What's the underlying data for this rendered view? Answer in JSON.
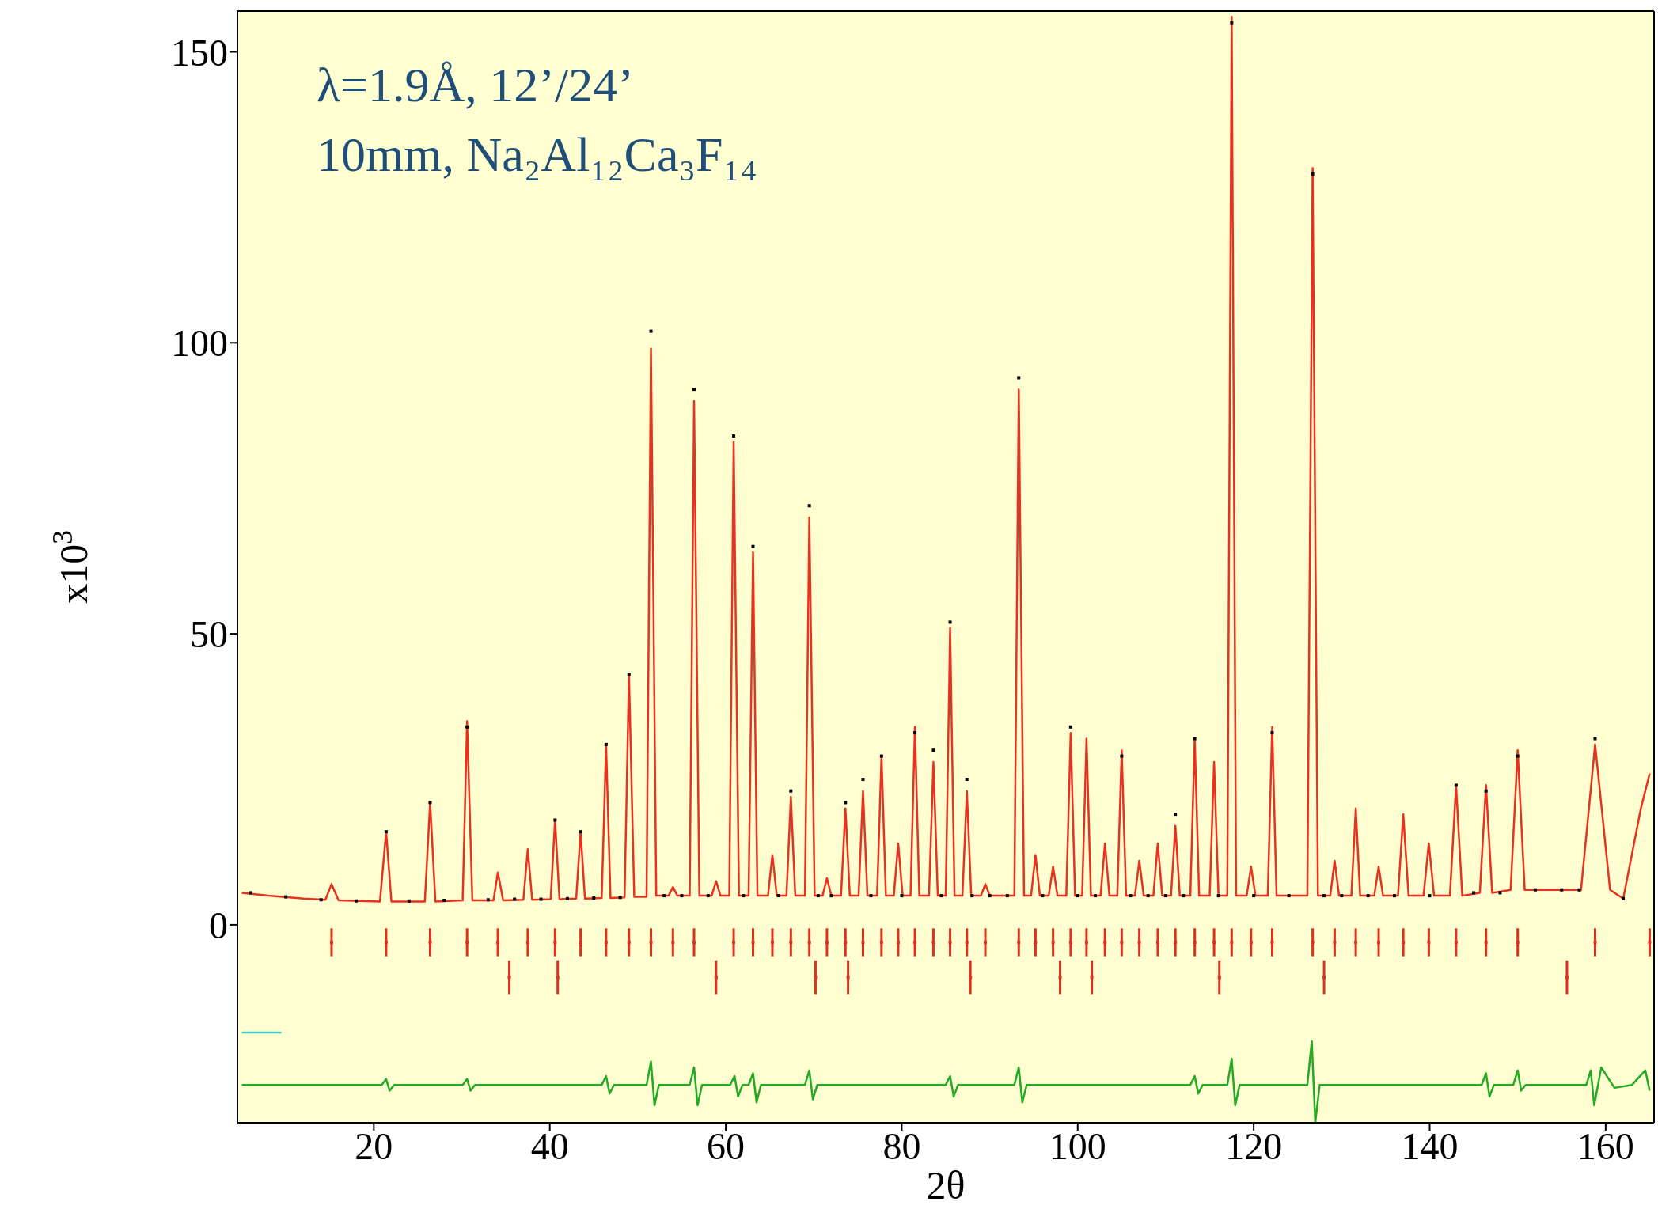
{
  "chart_data": {
    "type": "line",
    "xlabel": "2θ",
    "ylabel": "x10$^{3}$",
    "annotations": [
      "λ=1.9Å, 12’/24’",
      "10mm, Na₂Al₁₂Ca₃F₁₄"
    ],
    "xlim": [
      4.5,
      165.5
    ],
    "ylim": [
      -34,
      157
    ],
    "xticks": [
      20,
      40,
      60,
      80,
      100,
      120,
      140,
      160
    ],
    "yticks": [
      0,
      50,
      100,
      150
    ],
    "legend": false,
    "series": [
      {
        "type": "scatter",
        "color": "#000000",
        "marker": "square",
        "x": [
          6,
          10,
          14,
          18,
          21.4,
          24,
          26.4,
          28,
          30.6,
          33,
          36,
          39,
          40.6,
          42,
          43.5,
          45,
          46.4,
          48,
          49,
          51.5,
          53,
          55,
          56.4,
          58,
          60.9,
          62,
          63.1,
          66,
          67.4,
          69.5,
          70.5,
          72,
          73.6,
          75.6,
          76.5,
          77.7,
          80,
          81.5,
          83.6,
          84.5,
          85.5,
          88,
          87.4,
          90,
          92,
          93.3,
          96,
          99.2,
          100,
          102,
          105,
          106,
          108,
          110,
          111.1,
          112,
          113.3,
          116,
          117.5,
          120,
          122.1,
          124,
          126.7,
          128,
          130,
          133,
          136,
          140,
          143,
          145,
          146.4,
          148,
          150,
          152,
          155,
          157,
          158.8,
          162
        ],
        "values": [
          5.5,
          4.8,
          4.3,
          4.1,
          16,
          4.1,
          21,
          4.2,
          34,
          4.3,
          4.4,
          4.4,
          18,
          4.5,
          16,
          4.6,
          31,
          4.7,
          43,
          102,
          5,
          5,
          92,
          5,
          84,
          5,
          65,
          5,
          23,
          72,
          5,
          5,
          21,
          25,
          5,
          29,
          5,
          33,
          30,
          5,
          52,
          5,
          25,
          5,
          5,
          94,
          5,
          34,
          5,
          5,
          29,
          5,
          5,
          5,
          19,
          5,
          32,
          5,
          155,
          5,
          33,
          5,
          129,
          5,
          5,
          5,
          5,
          5,
          24,
          5.5,
          23,
          5.5,
          29,
          6,
          6,
          6,
          32,
          4.5
        ]
      },
      {
        "color": "#e8321e",
        "marker": "none",
        "x": [
          5,
          8,
          12,
          14.5,
          15.2,
          16,
          20.7,
          21.4,
          22,
          25.8,
          26.4,
          27,
          30.1,
          30.6,
          31.2,
          33.6,
          34.1,
          34.7,
          37,
          37.5,
          38,
          40.1,
          40.6,
          41.1,
          43,
          43.5,
          44,
          45.9,
          46.4,
          46.9,
          48.5,
          49,
          49.6,
          51,
          51.5,
          52.1,
          53.5,
          54,
          54.5,
          55.9,
          56.4,
          57,
          58.4,
          58.9,
          59.4,
          60.4,
          60.9,
          61.5,
          62.6,
          63.1,
          63.6,
          64.8,
          65.3,
          65.8,
          66.9,
          67.4,
          67.9,
          69,
          69.5,
          70.1,
          71,
          71.5,
          72,
          73.1,
          73.6,
          74.1,
          75.1,
          75.6,
          76.1,
          77.2,
          77.7,
          78.2,
          79.1,
          79.6,
          80.1,
          81,
          81.5,
          82,
          83.1,
          83.6,
          84.1,
          85,
          85.5,
          86,
          86.9,
          87.4,
          87.9,
          89,
          89.5,
          90,
          92.8,
          93.3,
          93.9,
          94.7,
          95.2,
          95.7,
          96.7,
          97.2,
          97.7,
          98.7,
          99.2,
          99.7,
          100.5,
          101,
          101.5,
          102.6,
          103.1,
          103.6,
          104.5,
          105,
          105.5,
          106.5,
          107,
          107.5,
          108.6,
          109.1,
          109.6,
          110.6,
          111.1,
          111.6,
          112.8,
          113.3,
          113.8,
          115,
          115.5,
          116,
          117,
          117.5,
          118,
          119.2,
          119.7,
          120.2,
          121.6,
          122.1,
          122.6,
          126.1,
          126.7,
          127.3,
          128.7,
          129.2,
          129.7,
          131.1,
          131.6,
          132.1,
          133.7,
          134.2,
          134.7,
          136.4,
          137,
          137.6,
          139.3,
          139.9,
          140.5,
          142.3,
          143,
          143.7,
          145.7,
          146.4,
          147.1,
          149.2,
          150,
          150.8,
          153,
          155,
          157.2,
          158.8,
          160.5,
          162,
          164,
          165
        ],
        "values": [
          5.5,
          5,
          4.5,
          4.3,
          7,
          4.2,
          4,
          16,
          4,
          4,
          21,
          4,
          4.2,
          35,
          4.2,
          4.2,
          9,
          4.2,
          4.3,
          13,
          4.3,
          4.4,
          18,
          4.4,
          4.5,
          16,
          4.5,
          4.6,
          31,
          4.6,
          4.7,
          43,
          4.8,
          4.8,
          99,
          5,
          5,
          6.5,
          5,
          5,
          90,
          5,
          5,
          7.5,
          5,
          5,
          83,
          5,
          5,
          64,
          5,
          5,
          12,
          5,
          5,
          22,
          5,
          5,
          70,
          5,
          5,
          8,
          5,
          5,
          20,
          5,
          5,
          23,
          5,
          5,
          29,
          5,
          5,
          14,
          5,
          5,
          34,
          5,
          5,
          28,
          5,
          5,
          51,
          5,
          5,
          23,
          5,
          5,
          7,
          5,
          5,
          92,
          5,
          5,
          12,
          5,
          5,
          10,
          5,
          5,
          33,
          5,
          5,
          32,
          5,
          5,
          14,
          5,
          5,
          30,
          5,
          5,
          11,
          5,
          5,
          14,
          5,
          5,
          17,
          5,
          5,
          32,
          5,
          5,
          28,
          5,
          5,
          156,
          5,
          5,
          10,
          5,
          5,
          34,
          5,
          5,
          130,
          5,
          5,
          11,
          5,
          5,
          20,
          5,
          5,
          10,
          5,
          5,
          19,
          5,
          5,
          14,
          5,
          5,
          24,
          5,
          5.5,
          24,
          5.5,
          6,
          30,
          6,
          6,
          6,
          6,
          31,
          6,
          4.5,
          20,
          26
        ]
      },
      {
        "type": "line",
        "color": "#22aa22",
        "marker": "none",
        "x": [
          5,
          20.9,
          21.4,
          21.8,
          22.3,
          30.1,
          30.6,
          31,
          31.5,
          45.9,
          46.4,
          46.8,
          47.3,
          51,
          51.5,
          51.9,
          52.4,
          55.9,
          56.4,
          56.8,
          57.3,
          60.5,
          61,
          61.4,
          61.9,
          62.6,
          63.1,
          63.5,
          64,
          69,
          69.5,
          69.9,
          70.4,
          85,
          85.5,
          85.9,
          86.4,
          92.8,
          93.3,
          93.7,
          94.2,
          112.8,
          113.3,
          113.7,
          114.2,
          117,
          117.5,
          117.9,
          118.4,
          126.1,
          126.6,
          127,
          127.5,
          145.9,
          146.4,
          146.8,
          147.3,
          149.5,
          150,
          150.4,
          150.9,
          157.8,
          158.3,
          158.7,
          159.5,
          161,
          163,
          164.5,
          165
        ],
        "values": [
          -27.5,
          -27.5,
          -26.5,
          -28.5,
          -27.5,
          -27.5,
          -26.5,
          -28.5,
          -27.5,
          -27.5,
          -26,
          -29,
          -27.5,
          -27.5,
          -23.5,
          -31,
          -27.5,
          -27.5,
          -24.5,
          -31,
          -27.5,
          -27.5,
          -26,
          -29.5,
          -27.5,
          -27.5,
          -25.5,
          -30.5,
          -27.5,
          -27.5,
          -25,
          -30,
          -27.5,
          -27.5,
          -26,
          -29.5,
          -27.5,
          -27.5,
          -24.5,
          -30.5,
          -27.5,
          -27.5,
          -26,
          -29,
          -27.5,
          -27.5,
          -23,
          -31,
          -27.5,
          -27.5,
          -20,
          -34,
          -27.5,
          -27.5,
          -25.5,
          -29.5,
          -27.5,
          -27.5,
          -25,
          -28.5,
          -27.5,
          -27.5,
          -25,
          -31,
          -24.5,
          -28,
          -27.5,
          -25,
          -28.5
        ]
      },
      {
        "type": "line",
        "color": "#40d0d0",
        "marker": "none",
        "x": [
          5,
          9.5
        ],
        "values": [
          -18.5,
          -18.5
        ]
      },
      {
        "type": "scatter",
        "color": "#e03020",
        "marker": "square",
        "errors": [
          2.4,
          2.4,
          2.4,
          2.4,
          2.4,
          2.4,
          2.4,
          2.4,
          2.4,
          2.4,
          2.4,
          2.4,
          2.4,
          2.4,
          2.4,
          2.4,
          2.4,
          2.4,
          2.4,
          2.4,
          2.4,
          2.4,
          2.4,
          2.4,
          2.4,
          2.4,
          2.4,
          2.4,
          2.4,
          2.4,
          2.4,
          2.4,
          2.4,
          2.4,
          2.4,
          2.4,
          2.4,
          2.4,
          2.4,
          2.4,
          2.4,
          2.4,
          2.4,
          2.4,
          2.4,
          2.4,
          2.4,
          2.4,
          2.4,
          2.4,
          2.4,
          2.4,
          2.4,
          2.4
        ],
        "x": [
          15.2,
          21.4,
          26.4,
          30.6,
          34.1,
          37.5,
          40.6,
          43.5,
          46.4,
          49,
          51.5,
          54,
          56.4,
          60.9,
          63.1,
          65.3,
          67.4,
          69.5,
          71.5,
          73.6,
          75.6,
          77.7,
          79.6,
          81.5,
          83.6,
          85.5,
          87.4,
          89.5,
          93.3,
          95.2,
          97.2,
          99.2,
          101,
          103.1,
          105,
          107,
          109.1,
          111.1,
          113.3,
          115.5,
          117.5,
          119.7,
          122.1,
          126.7,
          129.2,
          131.6,
          134.2,
          137,
          139.9,
          143,
          146.4,
          150,
          158.8,
          165
        ],
        "values": [
          -3,
          -3,
          -3,
          -3,
          -3,
          -3,
          -3,
          -3,
          -3,
          -3,
          -3,
          -3,
          -3,
          -3,
          -3,
          -3,
          -3,
          -3,
          -3,
          -3,
          -3,
          -3,
          -3,
          -3,
          -3,
          -3,
          -3,
          -3,
          -3,
          -3,
          -3,
          -3,
          -3,
          -3,
          -3,
          -3,
          -3,
          -3,
          -3,
          -3,
          -3,
          -3,
          -3,
          -3,
          -3,
          -3,
          -3,
          -3,
          -3,
          -3,
          -3,
          -3,
          -3,
          -3
        ]
      },
      {
        "type": "scatter",
        "color": "#e03020",
        "marker": "square",
        "errors": [
          2.9,
          2.9,
          2.9,
          2.9,
          2.9,
          2.9,
          2.9,
          2.9,
          2.9,
          2.9,
          2.9
        ],
        "x": [
          35.4,
          40.9,
          58.9,
          70.2,
          73.9,
          87.8,
          98,
          101.6,
          116.1,
          128,
          155.6
        ],
        "values": [
          -9,
          -9,
          -9,
          -9,
          -9,
          -9,
          -9,
          -9,
          -9,
          -9,
          -9
        ]
      }
    ]
  }
}
